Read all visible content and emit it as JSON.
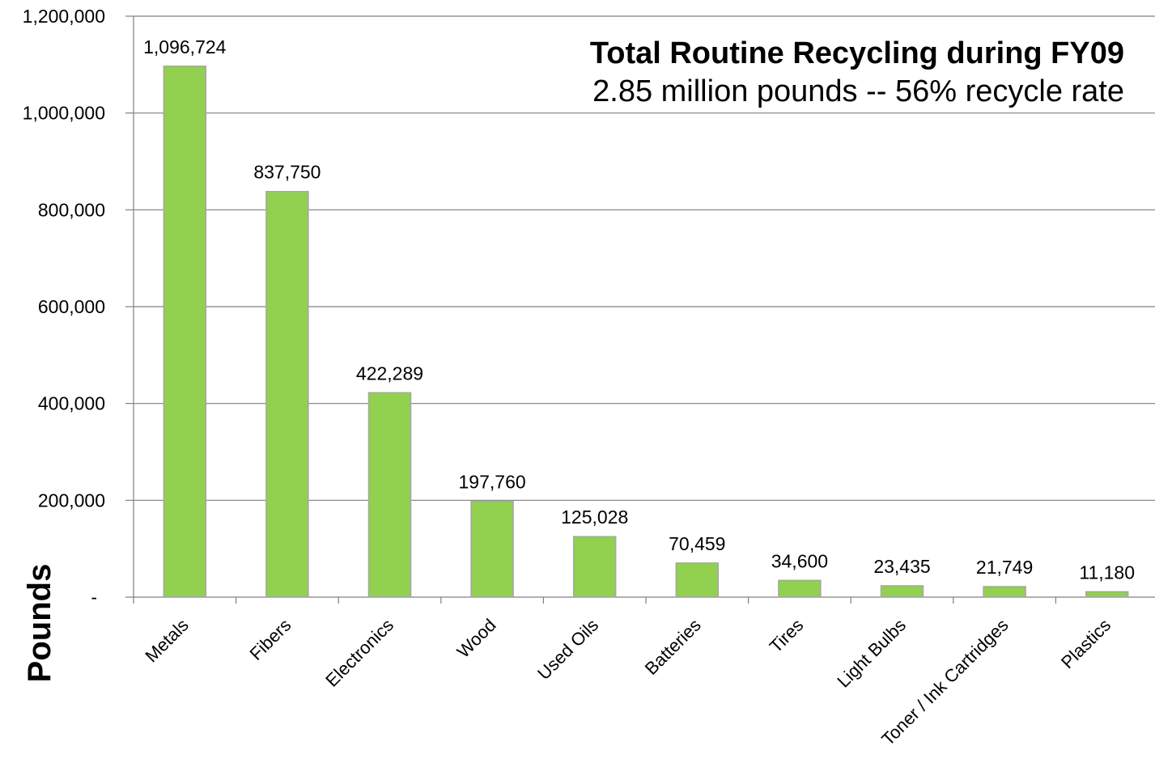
{
  "chart_data": {
    "type": "bar",
    "title": "Total Routine Recycling during FY09",
    "subtitle": "2.85 million pounds -- 56% recycle rate",
    "xlabel": "",
    "ylabel": "Pounds",
    "categories": [
      "Metals",
      "Fibers",
      "Electronics",
      "Wood",
      "Used Oils",
      "Batteries",
      "Tires",
      "Light Bulbs",
      "Toner / Ink Cartridges",
      "Plastics"
    ],
    "values": [
      1096724,
      837750,
      422289,
      197760,
      125028,
      70459,
      34600,
      23435,
      21749,
      11180
    ],
    "data_labels": [
      "1,096,724",
      "837,750",
      "422,289",
      "197,760",
      "125,028",
      "70,459",
      "34,600",
      "23,435",
      "21,749",
      "11,180"
    ],
    "ylim": [
      0,
      1200000
    ],
    "yticks": [
      0,
      200000,
      400000,
      600000,
      800000,
      1000000,
      1200000
    ],
    "ytick_labels": [
      "-",
      "200,000",
      "400,000",
      "600,000",
      "800,000",
      "1,000,000",
      "1,200,000"
    ],
    "grid": true,
    "bar_color": "#92D050",
    "bar_edge_color": "#A6A6A6",
    "grid_color": "#808080"
  }
}
